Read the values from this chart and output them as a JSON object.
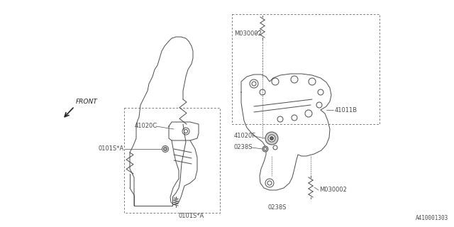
{
  "bg_color": "#ffffff",
  "line_color": "#4a4a4a",
  "label_color": "#4a4a4a",
  "part_number": "A410001303",
  "labels": {
    "front": "FRONT",
    "41020C": "41020C",
    "0101S_A_left": "0101S*A",
    "0101S_A_bottom": "0101S*A",
    "41011B": "41011B",
    "M030002_top": "M030002",
    "41020F": "41020F",
    "0238S_left": "0238S",
    "0238S_bottom": "0238S",
    "M030002_bottom": "M030002"
  }
}
